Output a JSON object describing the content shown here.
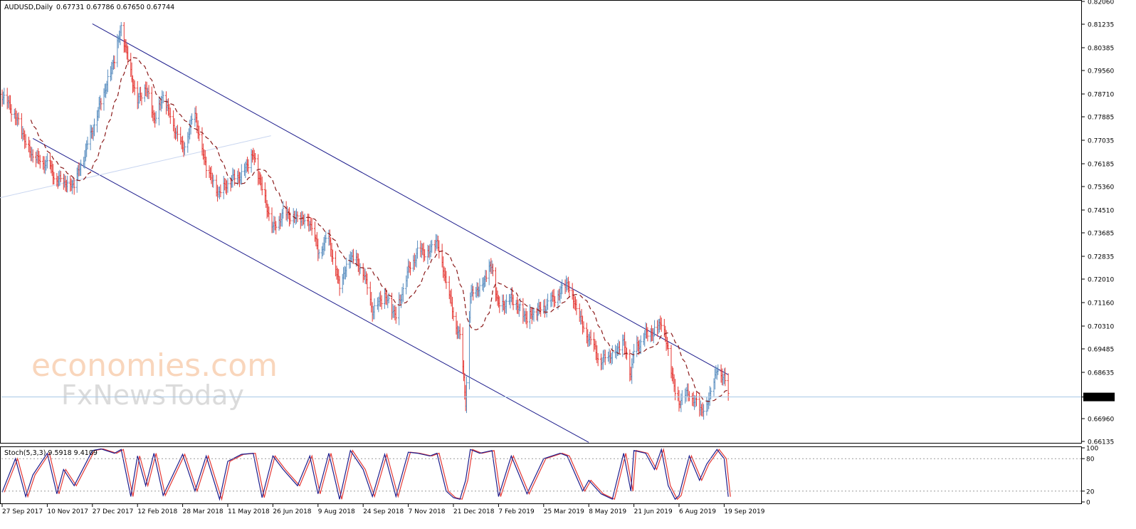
{
  "header": {
    "symbol": "AUDUSD,Daily",
    "ohlc": "0.67731 0.67786 0.67650 0.67744"
  },
  "stoch": {
    "label": "Stoch(5,3,3) 9.5918 9.4109",
    "levels": [
      "100",
      "80",
      "20",
      "0"
    ]
  },
  "watermark": {
    "line1": "economies.com",
    "line2": "FxNewsToday"
  },
  "colors": {
    "bull": "#5b8fc0",
    "bear": "#e53935",
    "ma": "#8b1a1a",
    "channel": "#1c1c8c",
    "trend": "#c9d6f0",
    "price_line": "#a8c8e6",
    "stoch_main": "#1c1c8c",
    "stoch_signal": "#e53935"
  },
  "chart_data": {
    "type": "candlestick",
    "ylim": [
      0.66135,
      0.8206
    ],
    "price_ticks": [
      "0.82060",
      "0.81235",
      "0.80385",
      "0.79560",
      "0.78710",
      "0.77885",
      "0.77035",
      "0.76185",
      "0.75360",
      "0.74510",
      "0.73685",
      "0.72835",
      "0.72010",
      "0.71160",
      "0.70310",
      "0.69485",
      "0.68635",
      "0.67744",
      "0.66960",
      "0.66135"
    ],
    "current_price": 0.67744,
    "date_labels": [
      "27 Sep 2017",
      "10 Nov 2017",
      "27 Dec 2017",
      "12 Feb 2018",
      "28 Mar 2018",
      "11 May 2018",
      "26 Jun 2018",
      "9 Aug 2018",
      "24 Sep 2018",
      "7 Nov 2018",
      "21 Dec 2018",
      "7 Feb 2019",
      "25 Mar 2019",
      "8 May 2019",
      "21 Jun 2019",
      "6 Aug 2019",
      "19 Sep 2019"
    ],
    "close_path": [
      [
        "27 Sep 2017",
        0.787
      ],
      [
        "10 Oct 2017",
        0.779
      ],
      [
        "20 Oct 2017",
        0.77
      ],
      [
        "27 Oct 2017",
        0.764
      ],
      [
        "10 Nov 2017",
        0.762
      ],
      [
        "20 Nov 2017",
        0.756
      ],
      [
        "8 Dec 2017",
        0.754
      ],
      [
        "27 Dec 2017",
        0.774
      ],
      [
        "5 Jan 2018",
        0.784
      ],
      [
        "19 Jan 2018",
        0.8
      ],
      [
        "26 Jan 2018",
        0.811
      ],
      [
        "5 Feb 2018",
        0.795
      ],
      [
        "12 Feb 2018",
        0.784
      ],
      [
        "20 Feb 2018",
        0.79
      ],
      [
        "28 Feb 2018",
        0.778
      ],
      [
        "9 Mar 2018",
        0.786
      ],
      [
        "28 Mar 2018",
        0.767
      ],
      [
        "9 Apr 2018",
        0.78
      ],
      [
        "20 Apr 2018",
        0.76
      ],
      [
        "3 May 2018",
        0.751
      ],
      [
        "11 May 2018",
        0.755
      ],
      [
        "25 May 2018",
        0.758
      ],
      [
        "6 Jun 2018",
        0.765
      ],
      [
        "15 Jun 2018",
        0.753
      ],
      [
        "26 Jun 2018",
        0.738
      ],
      [
        "6 Jul 2018",
        0.744
      ],
      [
        "20 Jul 2018",
        0.742
      ],
      [
        "1 Aug 2018",
        0.741
      ],
      [
        "9 Aug 2018",
        0.73
      ],
      [
        "20 Aug 2018",
        0.735
      ],
      [
        "31 Aug 2018",
        0.717
      ],
      [
        "11 Sep 2018",
        0.729
      ],
      [
        "24 Sep 2018",
        0.723
      ],
      [
        "3 Oct 2018",
        0.709
      ],
      [
        "15 Oct 2018",
        0.714
      ],
      [
        "26 Oct 2018",
        0.707
      ],
      [
        "7 Nov 2018",
        0.723
      ],
      [
        "16 Nov 2018",
        0.73
      ],
      [
        "28 Nov 2018",
        0.73
      ],
      [
        "5 Dec 2018",
        0.734
      ],
      [
        "14 Dec 2018",
        0.719
      ],
      [
        "21 Dec 2018",
        0.707
      ],
      [
        "28 Dec 2018",
        0.699
      ],
      [
        "3 Jan 2019",
        0.676
      ],
      [
        "8 Jan 2019",
        0.714
      ],
      [
        "18 Jan 2019",
        0.717
      ],
      [
        "31 Jan 2019",
        0.725
      ],
      [
        "7 Feb 2019",
        0.71
      ],
      [
        "20 Feb 2019",
        0.713
      ],
      [
        "8 Mar 2019",
        0.706
      ],
      [
        "25 Mar 2019",
        0.71
      ],
      [
        "10 Apr 2019",
        0.715
      ],
      [
        "17 Apr 2019",
        0.719
      ],
      [
        "2 May 2019",
        0.703
      ],
      [
        "8 May 2019",
        0.699
      ],
      [
        "20 May 2019",
        0.69
      ],
      [
        "31 May 2019",
        0.693
      ],
      [
        "11 Jun 2019",
        0.697
      ],
      [
        "18 Jun 2019",
        0.686
      ],
      [
        "21 Jun 2019",
        0.694
      ],
      [
        "3 Jul 2019",
        0.7
      ],
      [
        "12 Jul 2019",
        0.701
      ],
      [
        "19 Jul 2019",
        0.705
      ],
      [
        "26 Jul 2019",
        0.694
      ],
      [
        "2 Aug 2019",
        0.679
      ],
      [
        "6 Aug 2019",
        0.676
      ],
      [
        "16 Aug 2019",
        0.679
      ],
      [
        "26 Aug 2019",
        0.673
      ],
      [
        "2 Sep 2019",
        0.674
      ],
      [
        "12 Sep 2019",
        0.687
      ],
      [
        "19 Sep 2019",
        0.685
      ],
      [
        "23 Sep 2019",
        0.6774
      ]
    ],
    "stoch_path": [
      [
        "27 Sep 2017",
        18
      ],
      [
        "10 Oct 2017",
        80
      ],
      [
        "20 Oct 2017",
        10
      ],
      [
        "27 Oct 2017",
        50
      ],
      [
        "10 Nov 2017",
        90
      ],
      [
        "20 Nov 2017",
        15
      ],
      [
        "27 Nov 2017",
        60
      ],
      [
        "8 Dec 2017",
        30
      ],
      [
        "27 Dec 2017",
        95
      ],
      [
        "5 Jan 2018",
        98
      ],
      [
        "19 Jan 2018",
        90
      ],
      [
        "26 Jan 2018",
        97
      ],
      [
        "5 Feb 2018",
        10
      ],
      [
        "12 Feb 2018",
        85
      ],
      [
        "20 Feb 2018",
        30
      ],
      [
        "28 Feb 2018",
        90
      ],
      [
        "9 Mar 2018",
        12
      ],
      [
        "28 Mar 2018",
        88
      ],
      [
        "9 Apr 2018",
        20
      ],
      [
        "20 Apr 2018",
        85
      ],
      [
        "3 May 2018",
        5
      ],
      [
        "11 May 2018",
        75
      ],
      [
        "25 May 2018",
        88
      ],
      [
        "6 Jun 2018",
        90
      ],
      [
        "15 Jun 2018",
        8
      ],
      [
        "26 Jun 2018",
        85
      ],
      [
        "6 Jul 2018",
        60
      ],
      [
        "20 Jul 2018",
        30
      ],
      [
        "1 Aug 2018",
        85
      ],
      [
        "9 Aug 2018",
        15
      ],
      [
        "20 Aug 2018",
        90
      ],
      [
        "31 Aug 2018",
        5
      ],
      [
        "11 Sep 2018",
        95
      ],
      [
        "24 Sep 2018",
        60
      ],
      [
        "3 Oct 2018",
        10
      ],
      [
        "15 Oct 2018",
        88
      ],
      [
        "26 Oct 2018",
        10
      ],
      [
        "7 Nov 2018",
        92
      ],
      [
        "16 Nov 2018",
        90
      ],
      [
        "28 Nov 2018",
        85
      ],
      [
        "5 Dec 2018",
        90
      ],
      [
        "14 Dec 2018",
        20
      ],
      [
        "21 Dec 2018",
        8
      ],
      [
        "28 Dec 2018",
        5
      ],
      [
        "3 Jan 2019",
        40
      ],
      [
        "8 Jan 2019",
        97
      ],
      [
        "18 Jan 2019",
        90
      ],
      [
        "31 Jan 2019",
        95
      ],
      [
        "7 Feb 2019",
        10
      ],
      [
        "20 Feb 2019",
        85
      ],
      [
        "8 Mar 2019",
        15
      ],
      [
        "25 Mar 2019",
        80
      ],
      [
        "10 Apr 2019",
        90
      ],
      [
        "17 Apr 2019",
        85
      ],
      [
        "2 May 2019",
        20
      ],
      [
        "8 May 2019",
        40
      ],
      [
        "20 May 2019",
        15
      ],
      [
        "31 May 2019",
        5
      ],
      [
        "11 Jun 2019",
        90
      ],
      [
        "18 Jun 2019",
        20
      ],
      [
        "21 Jun 2019",
        95
      ],
      [
        "3 Jul 2019",
        90
      ],
      [
        "12 Jul 2019",
        60
      ],
      [
        "19 Jul 2019",
        97
      ],
      [
        "26 Jul 2019",
        30
      ],
      [
        "2 Aug 2019",
        5
      ],
      [
        "6 Aug 2019",
        12
      ],
      [
        "16 Aug 2019",
        85
      ],
      [
        "26 Aug 2019",
        40
      ],
      [
        "2 Sep 2019",
        70
      ],
      [
        "12 Sep 2019",
        97
      ],
      [
        "19 Sep 2019",
        80
      ],
      [
        "23 Sep 2019",
        9.59
      ]
    ],
    "lines": [
      {
        "from": [
          "27 Dec 2017",
          0.8125
        ],
        "to": [
          "23 Sep 2019",
          0.6855
        ]
      },
      {
        "from": [
          "27 Oct 2017",
          0.771
        ],
        "to": [
          "8 May 2019",
          0.661
        ]
      },
      {
        "from": [
          "1 Sep 2017",
          0.7475
        ],
        "to": [
          "24 Jun 2018",
          0.772
        ]
      }
    ]
  }
}
